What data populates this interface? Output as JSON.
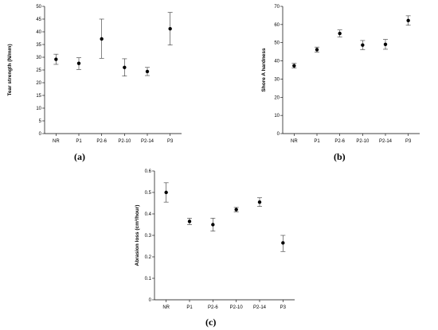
{
  "chart_data": [
    {
      "type": "scatter",
      "error_bars": true,
      "panel_label": "(a)",
      "categories": [
        "NR",
        "P1",
        "P2-6",
        "P2-10",
        "P2-14",
        "P3"
      ],
      "values": [
        29.2,
        27.6,
        37.2,
        26.0,
        24.4,
        41.2
      ],
      "errors_upper": [
        31.2,
        29.8,
        45.0,
        29.4,
        26.0,
        47.6
      ],
      "errors_lower": [
        27.2,
        25.2,
        29.6,
        22.6,
        22.8,
        34.8
      ],
      "xlabel": "",
      "ylabel": "Tear strength (N/mm)",
      "ylim": [
        0,
        50
      ],
      "yticks": [
        0,
        5,
        10,
        15,
        20,
        25,
        30,
        35,
        40,
        45,
        50
      ],
      "grid": false
    },
    {
      "type": "scatter",
      "error_bars": true,
      "panel_label": "(b)",
      "categories": [
        "NR",
        "P1",
        "P2-6",
        "P2-10",
        "P2-14",
        "P3"
      ],
      "values": [
        37.3,
        46.2,
        55.1,
        48.7,
        49.1,
        62.2
      ],
      "errors_upper": [
        38.6,
        47.6,
        57.0,
        51.2,
        51.8,
        64.8
      ],
      "errors_lower": [
        36.0,
        44.8,
        53.2,
        46.2,
        46.4,
        59.6
      ],
      "xlabel": "",
      "ylabel": "Shore A hardness",
      "ylim": [
        0,
        70
      ],
      "yticks": [
        0,
        10,
        20,
        30,
        40,
        50,
        60,
        70
      ],
      "grid": false
    },
    {
      "type": "scatter",
      "error_bars": true,
      "panel_label": "(c)",
      "categories": [
        "NR",
        "P1",
        "P2-6",
        "P2-10",
        "P2-14",
        "P3"
      ],
      "values": [
        0.5,
        0.365,
        0.35,
        0.42,
        0.455,
        0.265
      ],
      "errors_upper": [
        0.545,
        0.38,
        0.38,
        0.43,
        0.475,
        0.3
      ],
      "errors_lower": [
        0.455,
        0.35,
        0.32,
        0.41,
        0.435,
        0.225
      ],
      "xlabel": "",
      "ylabel": "Abrasion loss (cm³/hour)",
      "ylim": [
        0,
        0.6
      ],
      "yticks": [
        "0",
        "0.1",
        "0.2",
        "0.3",
        "0.4",
        "0.5",
        "0.6"
      ],
      "grid": false
    }
  ]
}
